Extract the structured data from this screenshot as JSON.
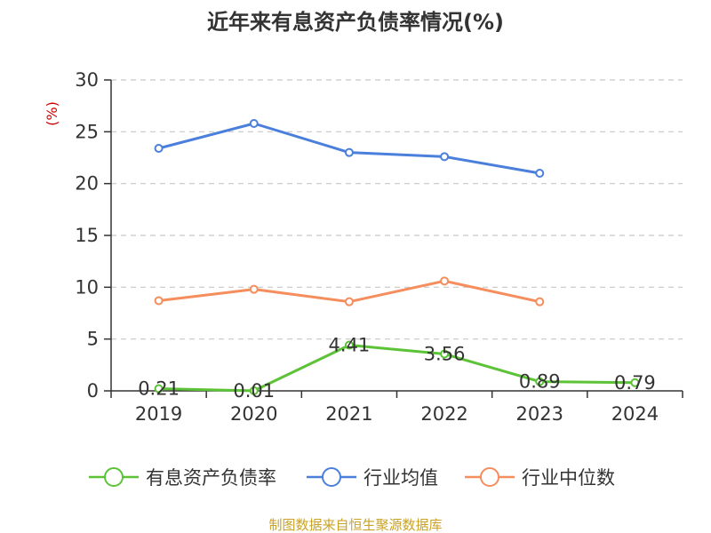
{
  "chart_data": {
    "type": "line",
    "title": "近年来有息资产负债率情况(%)",
    "unit_label": "(%)",
    "categories": [
      "2019",
      "2020",
      "2021",
      "2022",
      "2023",
      "2024"
    ],
    "ylim": [
      0,
      30
    ],
    "yticks": [
      "0",
      "5",
      "10",
      "15",
      "20",
      "25",
      "30"
    ],
    "grid": true,
    "legend_position": "bottom",
    "series": [
      {
        "name": "有息资产负债率",
        "color": "#5cc236",
        "values": [
          0.21,
          0.01,
          4.41,
          3.56,
          0.89,
          0.79
        ],
        "labels": [
          "0.21",
          "0.01",
          "4.41",
          "3.56",
          "0.89",
          "0.79"
        ]
      },
      {
        "name": "行业均值",
        "color": "#4a7fdc",
        "values": [
          23.4,
          25.8,
          23.0,
          22.6,
          21.0,
          null
        ]
      },
      {
        "name": "行业中位数",
        "color": "#f58d5c",
        "values": [
          8.7,
          9.8,
          8.6,
          10.6,
          8.6,
          null
        ]
      }
    ]
  },
  "source": "制图数据来自恒生聚源数据库"
}
